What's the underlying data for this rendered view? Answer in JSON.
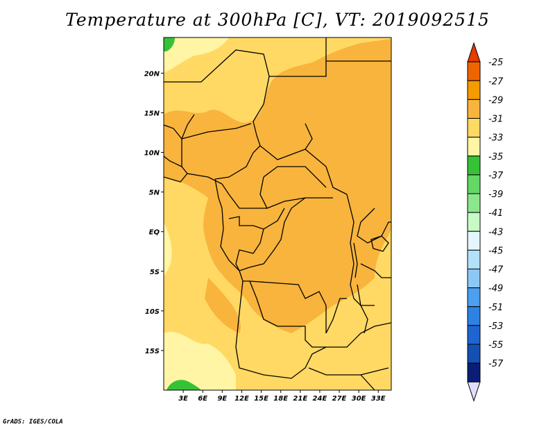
{
  "title": "Temperature at 300hPa [C], VT: 2019092515",
  "credit": "GrADS: IGES/COLA",
  "chart_data": {
    "type": "heatmap",
    "title": "Temperature at 300hPa [C], VT: 2019092515",
    "variable": "Temperature at 300hPa",
    "units": "C",
    "valid_time": "2019092515",
    "x_axis": {
      "range": [
        0,
        35
      ],
      "ticks": [
        3,
        6,
        9,
        12,
        15,
        18,
        21,
        24,
        27,
        30,
        33
      ],
      "tick_labels": [
        "3E",
        "6E",
        "9E",
        "12E",
        "15E",
        "18E",
        "21E",
        "24E",
        "27E",
        "30E",
        "33E"
      ]
    },
    "y_axis": {
      "range": [
        -20,
        24.5
      ],
      "ticks": [
        20,
        15,
        10,
        5,
        0,
        -5,
        -10,
        -15
      ],
      "tick_labels": [
        "20N",
        "15N",
        "10N",
        "5N",
        "EQ",
        "5S",
        "10S",
        "15S"
      ]
    },
    "colorbar": {
      "levels": [
        -25,
        -27,
        -29,
        -31,
        -33,
        -35,
        -37,
        -39,
        -41,
        -43,
        -45,
        -47,
        -49,
        -51,
        -53,
        -55,
        -57
      ],
      "colors": [
        "#E63C00",
        "#F06400",
        "#F59B00",
        "#F8B43C",
        "#FFD964",
        "#FFF5A5",
        "#36C236",
        "#64D864",
        "#8CE68C",
        "#C8FAC8",
        "#E4F6FC",
        "#B4E1FA",
        "#8CC8F5",
        "#4BA0F0",
        "#2D82E6",
        "#1E64D2",
        "#1450B4",
        "#0A1E78",
        "#E1DCFA"
      ],
      "placement": "right"
    },
    "approximate_field_levels": [
      -29,
      -31,
      -33,
      -35,
      -37
    ]
  }
}
